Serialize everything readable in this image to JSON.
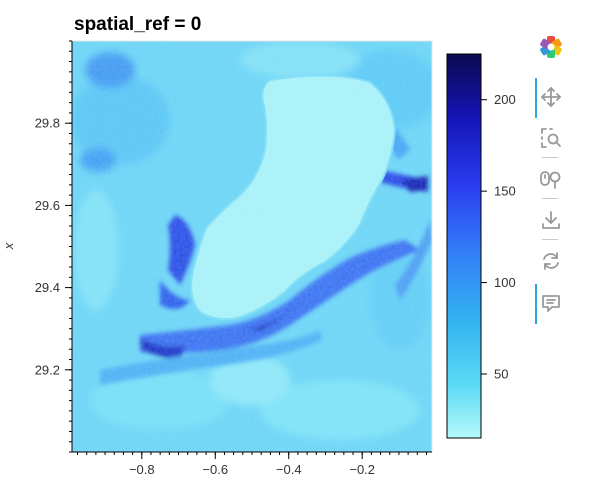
{
  "title": "spatial_ref = 0",
  "chart_data": {
    "type": "heatmap",
    "title": "spatial_ref = 0",
    "xlabel": "",
    "ylabel": "x",
    "x_ticks": [
      -0.8,
      -0.6,
      -0.4,
      -0.2
    ],
    "x_tick_labels": [
      "−0.8",
      "−0.6",
      "−0.4",
      "−0.2"
    ],
    "xlim": [
      -0.99,
      -0.01
    ],
    "y_ticks": [
      29.2,
      29.4,
      29.6,
      29.8
    ],
    "y_tick_labels": [
      "29.2",
      "29.4",
      "29.6",
      "29.8"
    ],
    "ylim": [
      29.0,
      30.0
    ],
    "colorbar": {
      "ticks": [
        50,
        100,
        150,
        200
      ],
      "tick_labels": [
        "50",
        "100",
        "150",
        "200"
      ],
      "range": [
        15,
        225
      ],
      "colormap": [
        "#b6fafa",
        "#5bdaf5",
        "#33b4f0",
        "#3380f7",
        "#2a3cf0",
        "#1414b4",
        "#0a0a50"
      ]
    },
    "background_value": 40,
    "lake_value": 20
  },
  "toolbar": {
    "tools": [
      {
        "name": "bokeh-logo-icon",
        "active": false
      },
      {
        "name": "pan-tool-icon",
        "active": true
      },
      {
        "name": "box-zoom-icon",
        "active": false
      },
      {
        "name": "wheel-zoom-icon",
        "active": false
      },
      {
        "name": "save-icon",
        "active": false
      },
      {
        "name": "reset-icon",
        "active": false
      },
      {
        "name": "hover-icon",
        "active": true
      }
    ],
    "accent": "#26aae1"
  }
}
